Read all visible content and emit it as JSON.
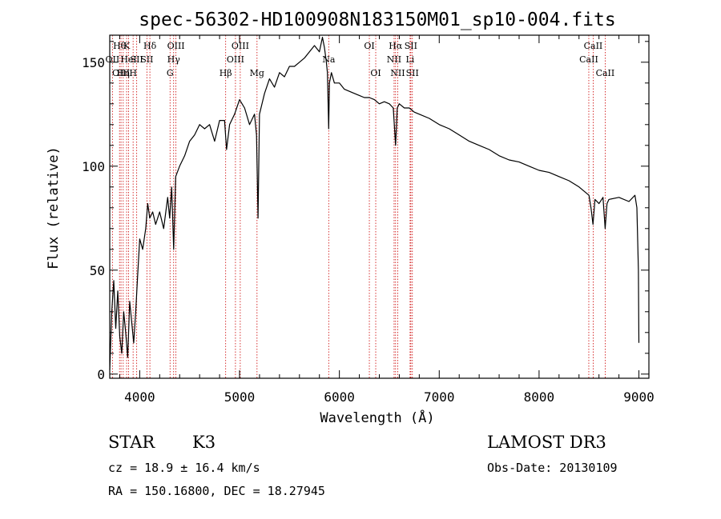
{
  "chart_data": {
    "type": "line",
    "title": "spec-56302-HD100908N183150M01_sp10-004.fits",
    "xlabel": "Wavelength (Å)",
    "ylabel": "Flux (relative)",
    "xlim": [
      3700,
      9100
    ],
    "ylim": [
      -2,
      163
    ],
    "xticks": [
      4000,
      5000,
      6000,
      7000,
      8000,
      9000
    ],
    "yticks": [
      0,
      50,
      100,
      150
    ],
    "grid": false,
    "series": [
      {
        "x": [
          3700,
          3720,
          3740,
          3760,
          3780,
          3800,
          3820,
          3840,
          3860,
          3880,
          3900,
          3920,
          3940,
          3960,
          3980,
          4000,
          4030,
          4060,
          4080,
          4100,
          4130,
          4160,
          4200,
          4240,
          4280,
          4300,
          4320,
          4340,
          4360,
          4400,
          4450,
          4500,
          4550,
          4600,
          4650,
          4700,
          4750,
          4800,
          4850,
          4870,
          4900,
          4950,
          5000,
          5050,
          5100,
          5150,
          5170,
          5185,
          5200,
          5250,
          5300,
          5350,
          5400,
          5450,
          5500,
          5550,
          5600,
          5650,
          5700,
          5750,
          5800,
          5830,
          5850,
          5870,
          5880,
          5893,
          5900,
          5920,
          5950,
          6000,
          6050,
          6100,
          6150,
          6200,
          6250,
          6300,
          6350,
          6400,
          6450,
          6500,
          6540,
          6563,
          6580,
          6600,
          6650,
          6700,
          6750,
          6800,
          6900,
          7000,
          7100,
          7200,
          7300,
          7400,
          7500,
          7600,
          7700,
          7800,
          7900,
          8000,
          8100,
          8200,
          8300,
          8400,
          8500,
          8520,
          8540,
          8560,
          8600,
          8640,
          8662,
          8680,
          8700,
          8800,
          8900,
          8960,
          8980,
          8995,
          9000
        ],
        "values": [
          2,
          30,
          45,
          22,
          40,
          18,
          10,
          30,
          20,
          8,
          35,
          25,
          15,
          30,
          48,
          65,
          60,
          70,
          82,
          75,
          78,
          72,
          78,
          70,
          85,
          75,
          90,
          60,
          95,
          100,
          105,
          112,
          115,
          120,
          118,
          120,
          112,
          122,
          122,
          108,
          120,
          125,
          132,
          128,
          120,
          125,
          115,
          75,
          125,
          135,
          142,
          138,
          145,
          143,
          148,
          148,
          150,
          152,
          155,
          158,
          155,
          162,
          157,
          150,
          145,
          118,
          140,
          145,
          140,
          140,
          137,
          136,
          135,
          134,
          133,
          133,
          132,
          130,
          131,
          130,
          128,
          110,
          128,
          130,
          128,
          128,
          126,
          125,
          123,
          120,
          118,
          115,
          112,
          110,
          108,
          105,
          103,
          102,
          100,
          98,
          97,
          95,
          93,
          90,
          86,
          80,
          72,
          84,
          82,
          85,
          70,
          82,
          84,
          85,
          83,
          86,
          80,
          50,
          15
        ]
      }
    ],
    "lines": [
      {
        "w": 3798,
        "label": "Hθ",
        "row": 0
      },
      {
        "w": 3727,
        "label": "OII",
        "row": 1
      },
      {
        "w": 3813,
        "label": "OIII",
        "row": 2
      },
      {
        "w": 3835,
        "label": "Hη",
        "row": 2
      },
      {
        "w": 3869,
        "label": "K",
        "row": 0
      },
      {
        "w": 3889,
        "label": "HeI",
        "row": 1
      },
      {
        "w": 3934,
        "label": "H",
        "row": 2
      },
      {
        "w": 3970,
        "label": "SII",
        "row": 1
      },
      {
        "w": 4102,
        "label": "Hδ",
        "row": 0
      },
      {
        "w": 4072,
        "label": "SII",
        "row": 1
      },
      {
        "w": 4363,
        "label": "OIII",
        "row": 0
      },
      {
        "w": 4340,
        "label": "Hγ",
        "row": 1
      },
      {
        "w": 4304,
        "label": "G",
        "row": 2
      },
      {
        "w": 4861,
        "label": "Hβ",
        "row": 2
      },
      {
        "w": 5007,
        "label": "OIII",
        "row": 0
      },
      {
        "w": 4959,
        "label": "OIII",
        "row": 1
      },
      {
        "w": 5175,
        "label": "Mg",
        "row": 2
      },
      {
        "w": 5893,
        "label": "Na",
        "row": 1
      },
      {
        "w": 6300,
        "label": "OI",
        "row": 0
      },
      {
        "w": 6364,
        "label": "OI",
        "row": 2
      },
      {
        "w": 6563,
        "label": "Hα",
        "row": 0
      },
      {
        "w": 6548,
        "label": "NII",
        "row": 1
      },
      {
        "w": 6584,
        "label": "NII",
        "row": 2
      },
      {
        "w": 6716,
        "label": "SII",
        "row": 0
      },
      {
        "w": 6708,
        "label": "Li",
        "row": 1
      },
      {
        "w": 6731,
        "label": "SII",
        "row": 2
      },
      {
        "w": 8542,
        "label": "CaII",
        "row": 0
      },
      {
        "w": 8498,
        "label": "CaII",
        "row": 1
      },
      {
        "w": 8662,
        "label": "CaII",
        "row": 2
      }
    ]
  },
  "colors": {
    "spectrum": "#000000",
    "line_markers": "#cc0000"
  },
  "footer": {
    "class_label": "STAR",
    "subclass": "K3",
    "survey": "LAMOST DR3",
    "redshift": "cz = 18.9 ± 16.4 km/s",
    "obs_date": "Obs-Date: 20130109",
    "coords": "RA = 150.16800, DEC =  18.27945"
  }
}
